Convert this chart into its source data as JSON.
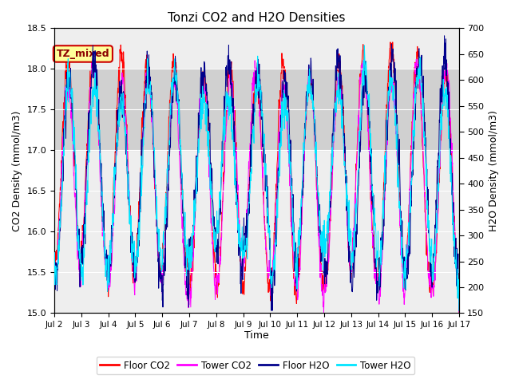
{
  "title": "Tonzi CO2 and H2O Densities",
  "xlabel": "Time",
  "ylabel_left": "CO2 Density (mmol/m3)",
  "ylabel_right": "H2O Density (mmol/m3)",
  "ylim_left": [
    15.0,
    18.5
  ],
  "ylim_right": [
    150,
    700
  ],
  "xlim": [
    0,
    360
  ],
  "xtick_positions": [
    0,
    24,
    48,
    72,
    96,
    120,
    144,
    168,
    192,
    216,
    240,
    264,
    288,
    312,
    336,
    360
  ],
  "xtick_labels": [
    "Jul 2",
    "Jul 3",
    "Jul 4",
    "Jul 5",
    "Jul 6",
    "Jul 7",
    "Jul 8",
    "Jul 9",
    "Jul 10",
    "Jul 11",
    "Jul 12",
    "Jul 13",
    "Jul 14",
    "Jul 15",
    "Jul 16",
    "Jul 17"
  ],
  "shade_ymin": 17.0,
  "shade_ymax": 18.0,
  "shade_color": "#d0d0d0",
  "annotation_text": "TZ_mixed",
  "floor_co2_color": "#ff0000",
  "tower_co2_color": "#ff00ff",
  "floor_h2o_color": "#00008b",
  "tower_h2o_color": "#00e5ff",
  "legend_labels": [
    "Floor CO2",
    "Tower CO2",
    "Floor H2O",
    "Tower H2O"
  ],
  "n_points": 1440
}
